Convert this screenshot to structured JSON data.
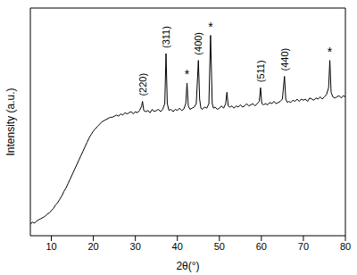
{
  "chart_data": {
    "type": "line",
    "x_label": "2θ(°)",
    "y_label": "Intensity (a.u.)",
    "color": "#000000",
    "xlim": [
      5,
      80
    ],
    "xticks": [
      10,
      20,
      30,
      40,
      50,
      60,
      70,
      80
    ],
    "ylim": [
      0,
      100
    ],
    "tick_labels": "x",
    "grid": false,
    "x": [
      5,
      5.5,
      6,
      6.5,
      7,
      7.5,
      8,
      8.5,
      9,
      9.5,
      10,
      10.5,
      11,
      11.5,
      12,
      12.5,
      13,
      13.5,
      14,
      14.5,
      15,
      15.5,
      16,
      16.5,
      17,
      17.5,
      18,
      18.5,
      19,
      19.5,
      20,
      20.5,
      21,
      21.5,
      22,
      22.5,
      23,
      23.5,
      24,
      24.5,
      25,
      25.5,
      26,
      26.5,
      27,
      27.5,
      28,
      28.5,
      29,
      29.5,
      30,
      30.5,
      31,
      31.5,
      31.7,
      32,
      32.5,
      33,
      33.5,
      34,
      34.5,
      35,
      35.5,
      36,
      36.5,
      37,
      37.3,
      37.6,
      38,
      38.5,
      39,
      39.5,
      40,
      40.5,
      41,
      41.5,
      42,
      42.3,
      42.6,
      43,
      43.5,
      44,
      44.5,
      45,
      45.3,
      45.6,
      46,
      46.5,
      47,
      47.5,
      47.9,
      48.3,
      48.6,
      49,
      49.5,
      50,
      50.5,
      51,
      51.5,
      51.8,
      52.1,
      52.5,
      53,
      53.5,
      54,
      54.5,
      55,
      55.5,
      56,
      56.5,
      57,
      57.5,
      58,
      58.5,
      59,
      59.5,
      59.8,
      60.1,
      60.5,
      61,
      61.5,
      62,
      62.5,
      63,
      63.5,
      64,
      64.5,
      65,
      65.5,
      65.8,
      66.2,
      66.5,
      67,
      67.5,
      68,
      68.5,
      69,
      69.5,
      70,
      70.5,
      71,
      71.5,
      72,
      72.5,
      73,
      73.5,
      74,
      74.5,
      75,
      75.5,
      76,
      76.3,
      76.6,
      77,
      77.5,
      78,
      78.5,
      79,
      79.5,
      80
    ],
    "values": [
      5,
      6,
      5.5,
      6.5,
      7,
      7.5,
      8,
      8.5,
      9.5,
      10,
      11,
      12,
      13.5,
      14.5,
      16,
      17.5,
      19.5,
      21,
      23,
      25,
      27,
      29,
      31,
      33,
      35,
      37,
      39,
      41,
      43,
      44.5,
      46,
      47,
      48,
      49,
      50,
      50.5,
      51,
      51.5,
      52,
      52,
      52.5,
      53,
      52.5,
      53.5,
      53,
      54,
      53.5,
      54,
      54.5,
      53.5,
      54.5,
      54,
      55,
      57,
      59,
      55,
      54.5,
      55,
      54,
      55.5,
      54.5,
      55,
      55.5,
      54.5,
      55.5,
      58,
      80,
      58,
      55,
      55.5,
      54.5,
      55.5,
      55,
      56,
      55,
      55.5,
      58,
      67,
      57,
      55.5,
      56,
      56.5,
      58,
      77,
      60,
      56,
      55.5,
      56.5,
      56,
      58,
      88,
      58,
      56,
      56.5,
      55.5,
      56,
      57,
      56,
      58,
      63,
      57,
      56.5,
      57,
      56,
      57,
      56.5,
      57.5,
      56.5,
      57,
      58,
      57,
      57.5,
      58,
      57,
      58,
      59,
      65,
      58,
      57.5,
      58,
      57.5,
      58.5,
      58,
      59,
      58,
      58.5,
      59,
      60,
      70,
      60,
      58.5,
      59,
      58.5,
      59.5,
      59,
      60,
      59,
      60,
      59.5,
      60,
      59,
      60.5,
      60,
      59.5,
      60.5,
      60,
      61,
      60,
      61,
      62,
      65,
      77,
      63,
      61,
      60.5,
      61,
      61.5,
      60.5,
      61.5,
      61
    ],
    "annotations": [
      {
        "text": "(220)",
        "x": 31.7,
        "y": 59
      },
      {
        "text": "(311)",
        "x": 37.3,
        "y": 80
      },
      {
        "text": "*",
        "x": 42.3,
        "y": 67
      },
      {
        "text": "(400)",
        "x": 45,
        "y": 77
      },
      {
        "text": "*",
        "x": 47.9,
        "y": 88
      },
      {
        "text": "(511)",
        "x": 59.8,
        "y": 65
      },
      {
        "text": "(440)",
        "x": 65.5,
        "y": 70
      },
      {
        "text": "*",
        "x": 76.3,
        "y": 77
      }
    ]
  }
}
